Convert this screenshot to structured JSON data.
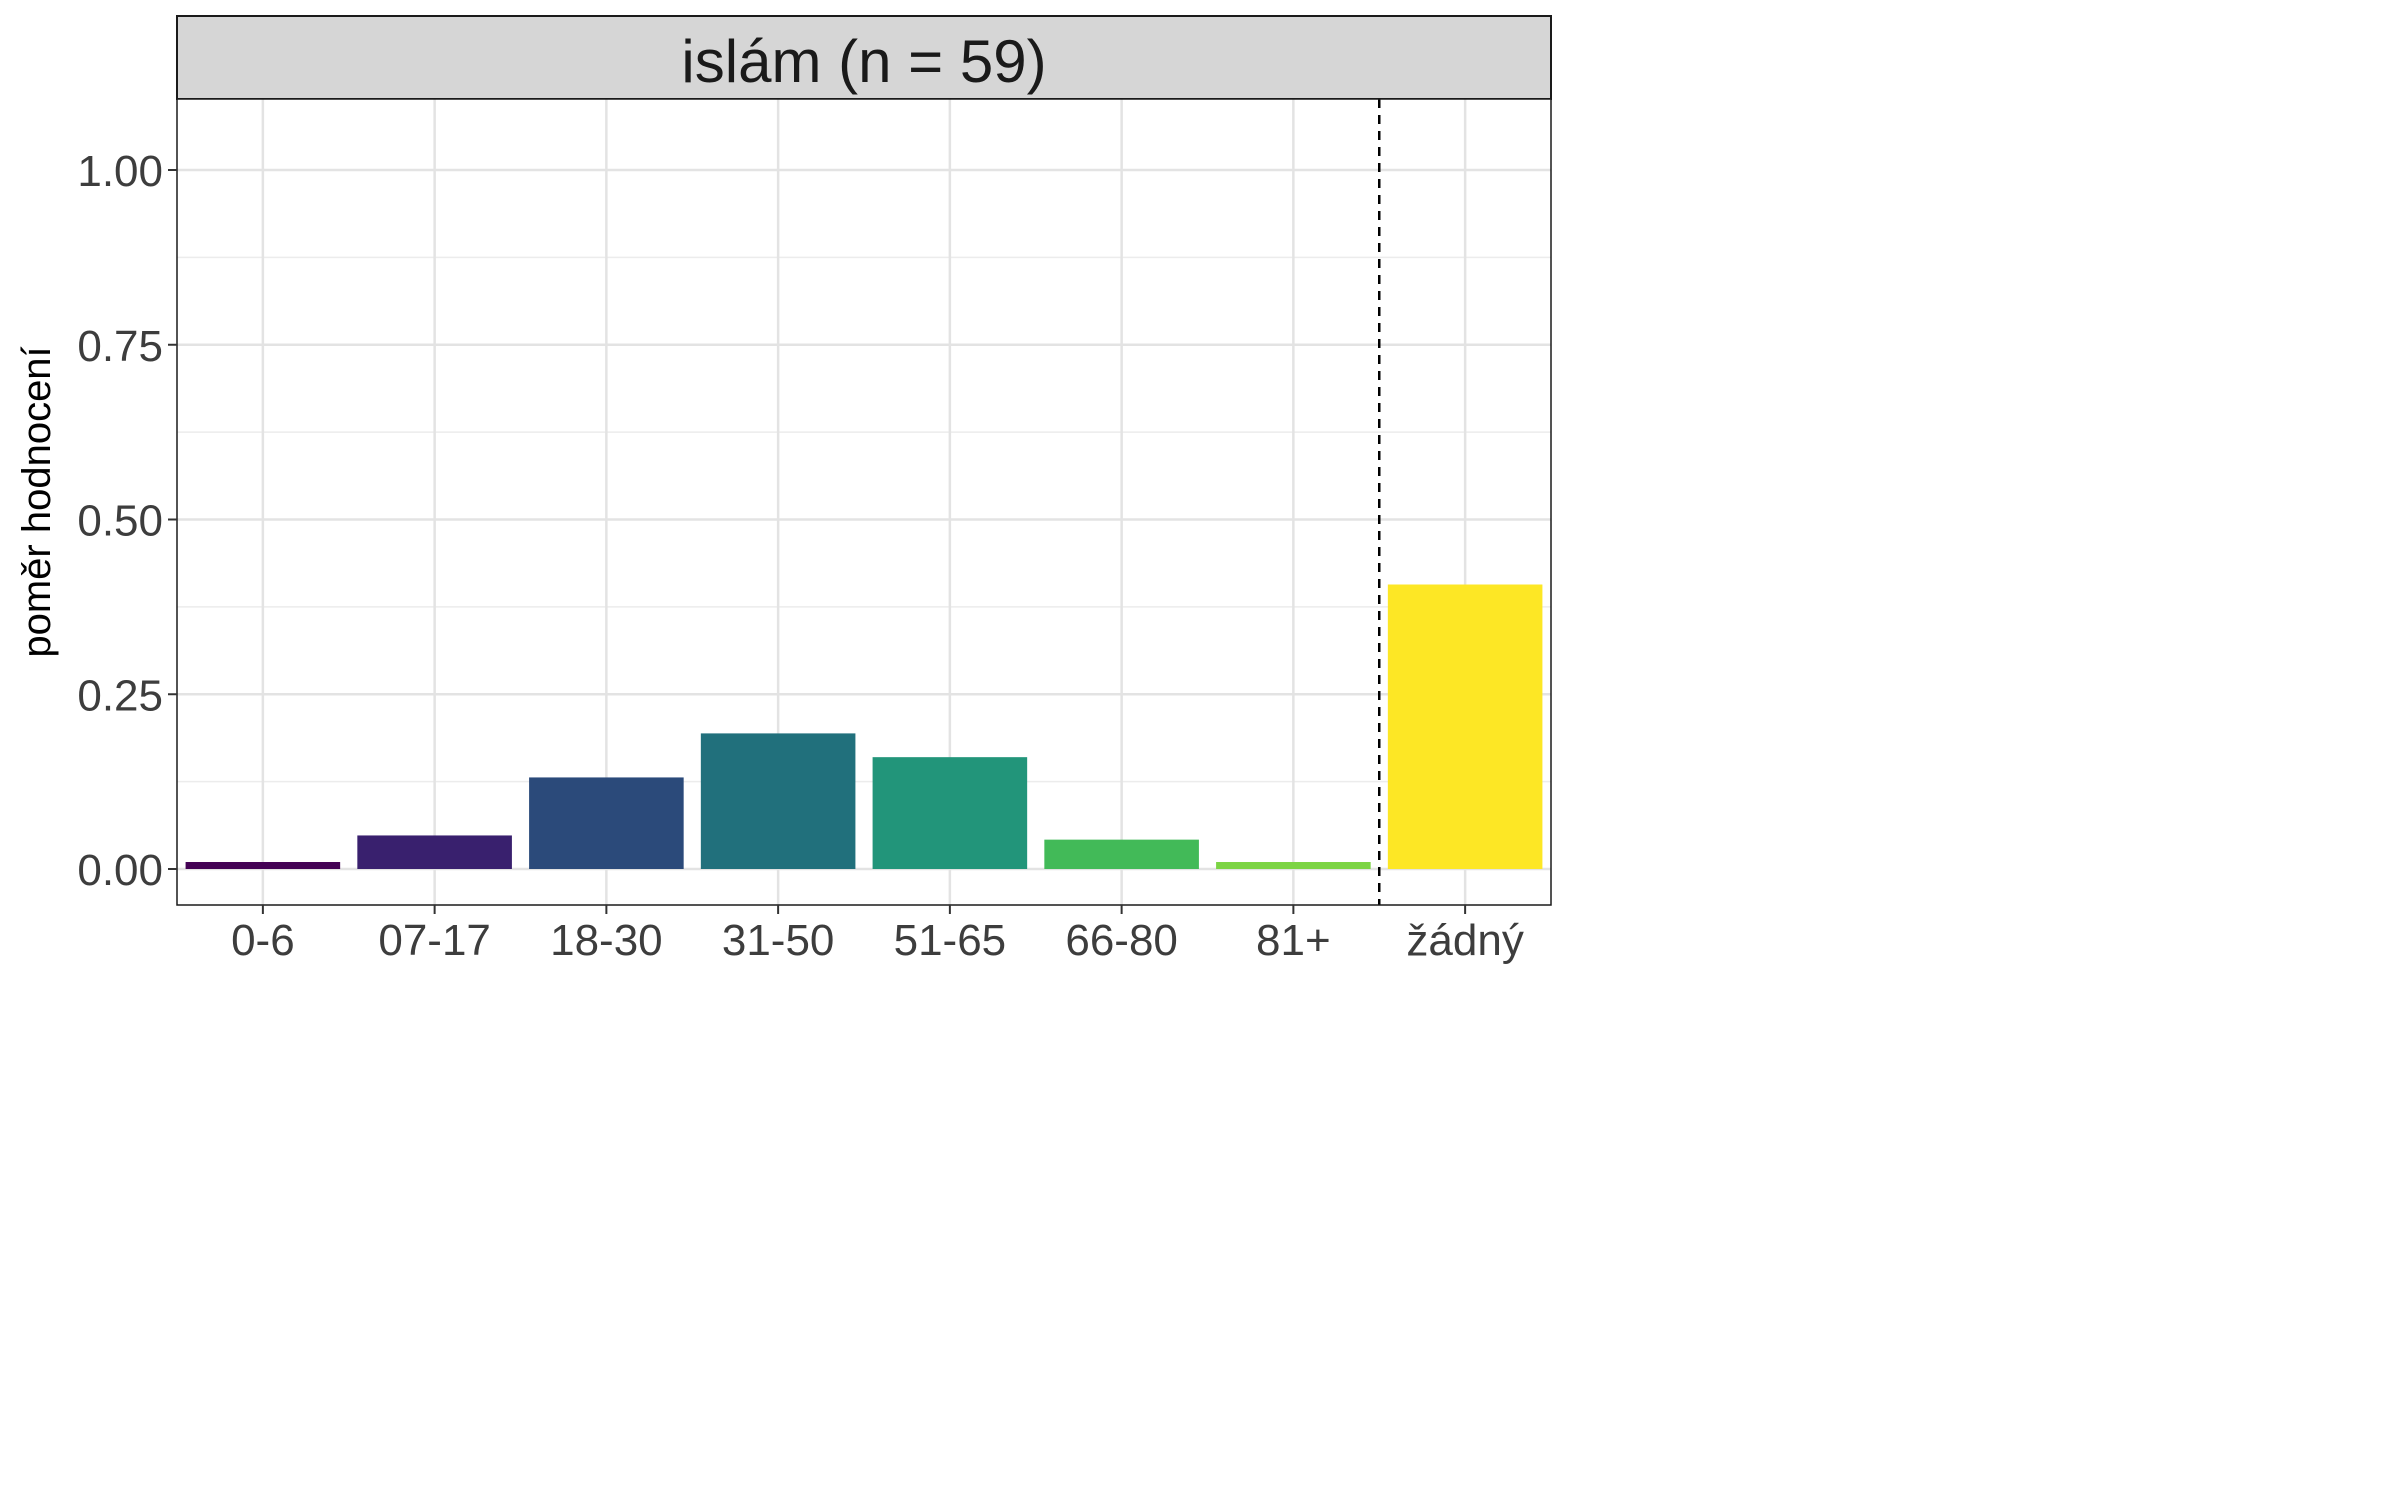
{
  "chart_data": {
    "type": "bar",
    "facet_title": "islám (n = 59)",
    "xlabel": "",
    "ylabel": "poměr hodnocení",
    "ylim": [
      0,
      1.1
    ],
    "y_ticks": [
      0,
      0.25,
      0.5,
      0.75,
      1.0
    ],
    "y_tick_labels": [
      "0.00",
      "0.25",
      "0.50",
      "0.75",
      "1.00"
    ],
    "categories": [
      "0-6",
      "07-17",
      "18-30",
      "31-50",
      "51-65",
      "66-80",
      "81+",
      "žádný"
    ],
    "values": [
      0.01,
      0.048,
      0.131,
      0.194,
      0.16,
      0.042,
      0.01,
      0.407
    ],
    "colors": [
      "#440154",
      "#39206e",
      "#2b4a7a",
      "#21707c",
      "#22957a",
      "#42ba58",
      "#7cd444",
      "#fde725"
    ],
    "separator_after_index": 6,
    "grid": true
  }
}
